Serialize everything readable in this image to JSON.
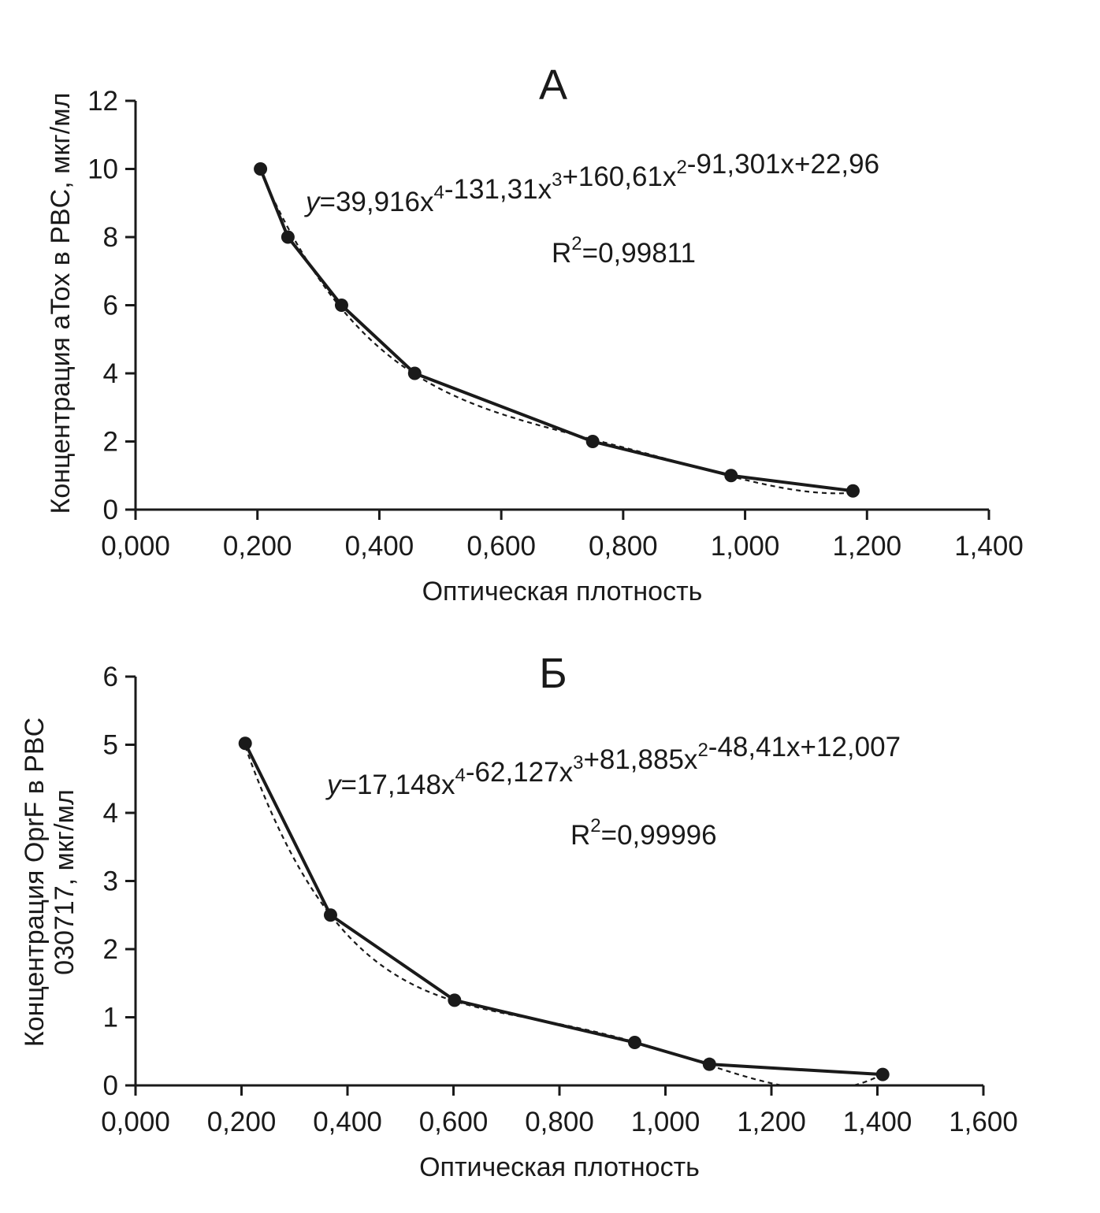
{
  "chart_data": [
    {
      "type": "line",
      "title": "А",
      "xlabel": "Оптическая плотность",
      "ylabel": "Концентрация aTox в PBC, мкг/мл",
      "xlim": [
        0,
        1.4
      ],
      "ylim": [
        0,
        12
      ],
      "x_ticks": [
        0,
        0.2,
        0.4,
        0.6,
        0.8,
        1.0,
        1.2,
        1.4
      ],
      "x_tick_labels": [
        "0,000",
        "0,200",
        "0,400",
        "0,600",
        "0,800",
        "1,000",
        "1,200",
        "1,400"
      ],
      "y_ticks": [
        0,
        2,
        4,
        6,
        8,
        10,
        12
      ],
      "y_tick_labels": [
        "0",
        "2",
        "4",
        "6",
        "8",
        "10",
        "12"
      ],
      "series": [
        {
          "x": [
            0.205,
            0.25,
            0.338,
            0.458,
            0.75,
            0.977,
            1.177
          ],
          "y": [
            10,
            8,
            6,
            4,
            2,
            1,
            0.55
          ]
        }
      ],
      "trendline": {
        "type": "polynomial",
        "order": 4,
        "coefficients": [
          39.916,
          -131.31,
          160.61,
          -91.301,
          22.96
        ],
        "equation": {
          "lead": "y",
          "segments": [
            {
              "text": "=39,916x",
              "sup": "4"
            },
            {
              "text": "-131,31x",
              "sup": "3"
            },
            {
              "text": "+160,61x",
              "sup": "2"
            },
            {
              "text": "-91,301x+22,96",
              "sup": ""
            }
          ]
        },
        "r2": {
          "base": "R",
          "sup": "2",
          "value": "=0,99811"
        }
      }
    },
    {
      "type": "line",
      "title": "Б",
      "xlabel": "Оптическая плотность",
      "ylabel": [
        "Концентрация OprF в PBC",
        "030717, мкг/мл"
      ],
      "xlim": [
        0,
        1.6
      ],
      "ylim": [
        0,
        6
      ],
      "x_ticks": [
        0,
        0.2,
        0.4,
        0.6,
        0.8,
        1.0,
        1.2,
        1.4,
        1.6
      ],
      "x_tick_labels": [
        "0,000",
        "0,200",
        "0,400",
        "0,600",
        "0,800",
        "1,000",
        "1,200",
        "1,400",
        "1,600"
      ],
      "y_ticks": [
        0,
        1,
        2,
        3,
        4,
        5,
        6
      ],
      "y_tick_labels": [
        "0",
        "1",
        "2",
        "3",
        "4",
        "5",
        "6"
      ],
      "series": [
        {
          "x": [
            0.207,
            0.368,
            0.602,
            0.942,
            1.083,
            1.41
          ],
          "y": [
            5.02,
            2.5,
            1.25,
            0.63,
            0.31,
            0.16
          ]
        }
      ],
      "trendline": {
        "type": "polynomial",
        "order": 4,
        "coefficients": [
          17.148,
          -62.127,
          81.885,
          -48.41,
          12.007
        ],
        "equation": {
          "lead": "y",
          "segments": [
            {
              "text": "=17,148x",
              "sup": "4"
            },
            {
              "text": "-62,127x",
              "sup": "3"
            },
            {
              "text": "+81,885x",
              "sup": "2"
            },
            {
              "text": "-48,41x+12,007",
              "sup": ""
            }
          ]
        },
        "r2": {
          "base": "R",
          "sup": "2",
          "value": "=0,99996"
        }
      }
    }
  ]
}
